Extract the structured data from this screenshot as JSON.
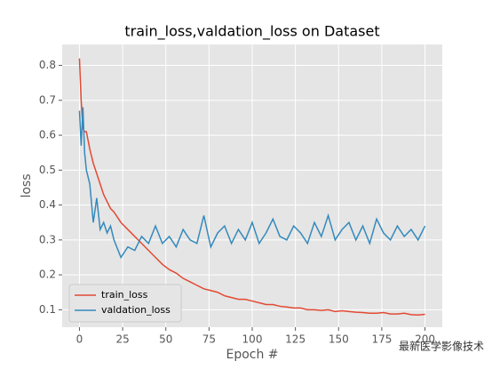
{
  "chart_data": {
    "type": "line",
    "title": "train_loss,valdation_loss on Dataset",
    "x_label": "Epoch #",
    "y_label": "loss",
    "x": [
      0,
      1,
      2,
      3,
      4,
      6,
      8,
      10,
      12,
      14,
      16,
      18,
      20,
      24,
      28,
      32,
      36,
      40,
      44,
      48,
      52,
      56,
      60,
      64,
      68,
      72,
      76,
      80,
      84,
      88,
      92,
      96,
      100,
      104,
      108,
      112,
      116,
      120,
      124,
      128,
      132,
      136,
      140,
      144,
      148,
      152,
      156,
      160,
      164,
      168,
      172,
      176,
      180,
      184,
      188,
      192,
      196,
      200
    ],
    "series": [
      {
        "name": "train_loss",
        "color": "#E24A33",
        "values": [
          0.82,
          0.7,
          0.62,
          0.61,
          0.61,
          0.56,
          0.52,
          0.49,
          0.46,
          0.43,
          0.41,
          0.39,
          0.38,
          0.35,
          0.33,
          0.31,
          0.29,
          0.27,
          0.25,
          0.23,
          0.215,
          0.205,
          0.19,
          0.18,
          0.17,
          0.16,
          0.155,
          0.15,
          0.14,
          0.135,
          0.13,
          0.13,
          0.125,
          0.12,
          0.115,
          0.115,
          0.11,
          0.108,
          0.105,
          0.105,
          0.1,
          0.1,
          0.098,
          0.1,
          0.095,
          0.097,
          0.095,
          0.093,
          0.092,
          0.09,
          0.09,
          0.092,
          0.088,
          0.088,
          0.09,
          0.086,
          0.085,
          0.087
        ]
      },
      {
        "name": "valdation_loss",
        "color": "#348ABD",
        "values": [
          0.67,
          0.57,
          0.68,
          0.55,
          0.5,
          0.46,
          0.35,
          0.42,
          0.33,
          0.35,
          0.32,
          0.34,
          0.3,
          0.25,
          0.28,
          0.27,
          0.31,
          0.29,
          0.34,
          0.29,
          0.31,
          0.28,
          0.33,
          0.3,
          0.29,
          0.37,
          0.28,
          0.32,
          0.34,
          0.29,
          0.33,
          0.3,
          0.35,
          0.29,
          0.32,
          0.36,
          0.31,
          0.3,
          0.34,
          0.32,
          0.29,
          0.35,
          0.31,
          0.37,
          0.3,
          0.33,
          0.35,
          0.3,
          0.34,
          0.29,
          0.36,
          0.32,
          0.3,
          0.34,
          0.31,
          0.33,
          0.3,
          0.34
        ]
      }
    ],
    "xlim": [
      -10,
      210
    ],
    "ylim": [
      0.05,
      0.86
    ],
    "xticks": [
      0,
      25,
      50,
      75,
      100,
      125,
      150,
      175,
      200
    ],
    "yticks": [
      0.1,
      0.2,
      0.3,
      0.4,
      0.5,
      0.6,
      0.7,
      0.8
    ],
    "grid": true,
    "legend": "lower left",
    "background": "#E5E5E5"
  },
  "watermark": "最新医学影像技术"
}
